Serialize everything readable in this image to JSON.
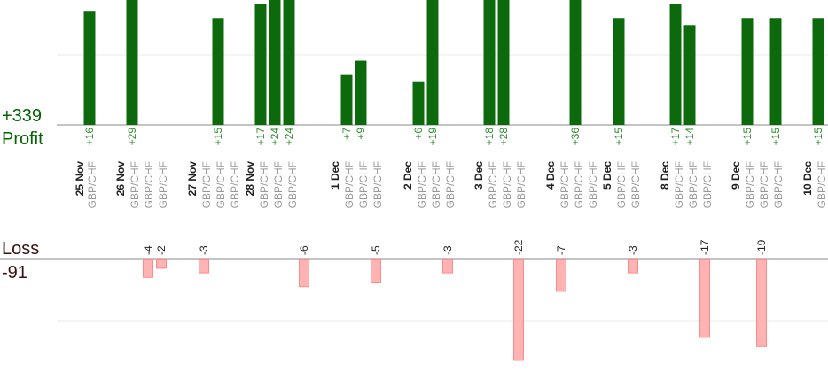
{
  "summary": {
    "profit_total": "+339",
    "profit_label": "Profit",
    "loss_label": "Loss",
    "loss_total": "-91"
  },
  "chart_data": {
    "type": "bar",
    "colors": {
      "profit": "#0c6a0c",
      "loss": "#ffb3b3"
    },
    "profit_trades": [
      {
        "date": "25 Nov",
        "pair": "GBP/CHF",
        "value": 16
      },
      {
        "date": "26 Nov",
        "pair": "GBP/CHF",
        "value": 29
      },
      {
        "date": "27 Nov",
        "pair": "GBP/CHF",
        "value": 15
      },
      {
        "date": "28 Nov",
        "pair": "GBP/CHF",
        "value": 17
      },
      {
        "date": "28 Nov",
        "pair": "GBP/CHF",
        "value": 24
      },
      {
        "date": "28 Nov",
        "pair": "GBP/CHF",
        "value": 24
      },
      {
        "date": "1 Dec",
        "pair": "GBP/CHF",
        "value": 7
      },
      {
        "date": "1 Dec",
        "pair": "GBP/CHF",
        "value": 9
      },
      {
        "date": "2 Dec",
        "pair": "GBP/CHF",
        "value": 6
      },
      {
        "date": "2 Dec",
        "pair": "GBP/CHF",
        "value": 19
      },
      {
        "date": "3 Dec",
        "pair": "GBP/CHF",
        "value": 18
      },
      {
        "date": "3 Dec",
        "pair": "GBP/CHF",
        "value": 28
      },
      {
        "date": "4 Dec",
        "pair": "GBP/CHF",
        "value": 36
      },
      {
        "date": "5 Dec",
        "pair": "GBP/CHF",
        "value": 15
      },
      {
        "date": "8 Dec",
        "pair": "GBP/CHF",
        "value": 17
      },
      {
        "date": "8 Dec",
        "pair": "GBP/CHF",
        "value": 14
      },
      {
        "date": "9 Dec",
        "pair": "GBP/CHF",
        "value": 15
      },
      {
        "date": "9 Dec",
        "pair": "GBP/CHF",
        "value": 15
      },
      {
        "date": "10 Dec",
        "pair": "GBP/CHF",
        "value": 15
      }
    ],
    "loss_trades": [
      {
        "date": "26 Nov",
        "value": -4
      },
      {
        "date": "26 Nov",
        "value": -2
      },
      {
        "date": "27 Nov",
        "value": -3
      },
      {
        "date": "28 Nov",
        "value": -6
      },
      {
        "date": "1 Dec",
        "value": -5
      },
      {
        "date": "2 Dec",
        "value": -3
      },
      {
        "date": "3 Dec",
        "value": -22
      },
      {
        "date": "4 Dec",
        "value": -7
      },
      {
        "date": "5 Dec",
        "value": -3
      },
      {
        "date": "8 Dec",
        "value": -17
      },
      {
        "date": "9 Dec",
        "value": -19
      }
    ],
    "day_groups": [
      {
        "date": "25 Nov",
        "pairs": [
          "GBP/CHF"
        ]
      },
      {
        "date": "26 Nov",
        "pairs": [
          "GBP/CHF",
          "GBP/CHF",
          "GBP/CHF"
        ]
      },
      {
        "date": "27 Nov",
        "pairs": [
          "GBP/CHF",
          "GBP/CHF",
          "GBP/CHF"
        ]
      },
      {
        "date": "28 Nov",
        "pairs": [
          "GBP/CHF",
          "GBP/CHF",
          "GBP/CHF"
        ]
      },
      {
        "date": "1 Dec",
        "pairs": [
          "GBP/CHF",
          "GBP/CHF",
          "GBP/CHF"
        ]
      },
      {
        "date": "2 Dec",
        "pairs": [
          "GBP/CHF",
          "GBP/CHF",
          "GBP/CHF"
        ]
      },
      {
        "date": "3 Dec",
        "pairs": [
          "GBP/CHF",
          "GBP/CHF",
          "GBP/CHF"
        ]
      },
      {
        "date": "4 Dec",
        "pairs": [
          "GBP/CHF",
          "GBP/CHF",
          "GBP/CHF"
        ]
      },
      {
        "date": "5 Dec",
        "pairs": [
          "GBP/CHF",
          "GBP/CHF"
        ]
      },
      {
        "date": "8 Dec",
        "pairs": [
          "GBP/CHF",
          "GBP/CHF",
          "GBP/CHF"
        ]
      },
      {
        "date": "9 Dec",
        "pairs": [
          "GBP/CHF",
          "GBP/CHF",
          "GBP/CHF"
        ]
      },
      {
        "date": "10 Dec",
        "pairs": [
          "GBP/CHF",
          "GBP/CHF"
        ]
      }
    ],
    "grid": true
  }
}
